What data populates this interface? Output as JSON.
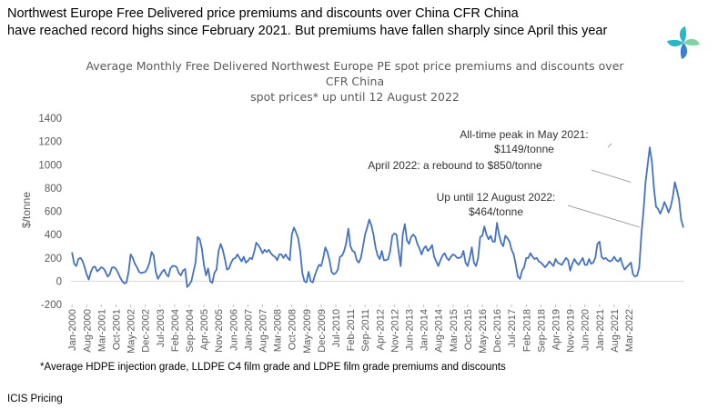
{
  "headline": {
    "line1": "Northwest Europe Free Delivered price premiums and discounts over China CFR China",
    "line2": "have reached record highs since February 2021. But premiums have fallen sharply since April this year"
  },
  "footnote": "*Average HDPE injection grade, LLDPE C4 film grade and LDPE film grade premiums and discounts",
  "source": "ICIS Pricing",
  "logo": {
    "icon": "icis-pinwheel-logo",
    "colors": [
      "#2bb8c6",
      "#3b7fd3",
      "#7ed3a0"
    ]
  },
  "chart_data": {
    "type": "line",
    "title_lines": [
      "Average Monthly Free Delivered Northwest Europe PE spot price premiums and discounts over",
      "CFR China",
      "spot prices* up until 12 August 2022"
    ],
    "xlabel": "",
    "ylabel": "$/tonne",
    "ylim": [
      -200,
      1400
    ],
    "yticks": [
      -200,
      0,
      200,
      400,
      600,
      800,
      1000,
      1200,
      1400
    ],
    "grid": false,
    "line_color": "#4472c4",
    "x_start": "Jan-2000",
    "xtick_labels": [
      "Jan-2000",
      "Aug-2000",
      "Mar-2001",
      "Oct-2001",
      "May-2002",
      "Dec-2002",
      "Jul-2003",
      "Feb-2004",
      "Sep-2004",
      "Apr-2005",
      "Nov-2005",
      "Jun-2006",
      "Jan-2007",
      "Aug-2007",
      "Mar-2008",
      "Oct-2008",
      "May-2009",
      "Dec-2009",
      "Jul-2010",
      "Feb-2011",
      "Sep-2011",
      "Apr-2012",
      "Nov-2012",
      "Jun-2013",
      "Jan-2014",
      "Aug-2014",
      "Mar-2015",
      "Oct-2015",
      "May-2016",
      "Dec-2016",
      "Jul-2017",
      "Feb-2018",
      "Sep-2018",
      "Apr-2019",
      "Nov-2019",
      "Jun-2020",
      "Jan-2021",
      "Aug-2021",
      "Mar-2022"
    ],
    "values": [
      245,
      150,
      130,
      190,
      200,
      175,
      120,
      55,
      15,
      80,
      120,
      125,
      85,
      100,
      120,
      110,
      80,
      40,
      60,
      115,
      120,
      105,
      70,
      30,
      0,
      -20,
      -10,
      80,
      230,
      200,
      150,
      120,
      80,
      70,
      75,
      80,
      110,
      160,
      250,
      220,
      80,
      20,
      50,
      80,
      100,
      60,
      40,
      110,
      130,
      130,
      120,
      70,
      50,
      90,
      105,
      -50,
      -30,
      0,
      80,
      160,
      380,
      360,
      280,
      140,
      50,
      110,
      0,
      -15,
      70,
      100,
      260,
      320,
      270,
      190,
      100,
      110,
      160,
      190,
      200,
      230,
      200,
      170,
      210,
      160,
      175,
      200,
      190,
      250,
      330,
      310,
      280,
      240,
      270,
      250,
      270,
      240,
      220,
      210,
      180,
      230,
      230,
      200,
      230,
      200,
      180,
      400,
      460,
      420,
      370,
      260,
      70,
      0,
      -10,
      80,
      0,
      -10,
      50,
      100,
      140,
      130,
      200,
      290,
      250,
      180,
      80,
      60,
      70,
      100,
      210,
      220,
      260,
      330,
      450,
      300,
      260,
      250,
      180,
      160,
      200,
      300,
      400,
      460,
      530,
      480,
      400,
      290,
      220,
      190,
      260,
      180,
      180,
      190,
      260,
      390,
      410,
      400,
      260,
      130,
      400,
      490,
      350,
      320,
      380,
      400,
      380,
      320,
      280,
      230,
      280,
      300,
      260,
      280,
      310,
      210,
      170,
      130,
      180,
      220,
      240,
      200,
      180,
      210,
      230,
      220,
      200,
      200,
      210,
      260,
      160,
      130,
      200,
      290,
      160,
      130,
      200,
      380,
      390,
      470,
      400,
      360,
      390,
      340,
      340,
      500,
      400,
      330,
      300,
      390,
      370,
      340,
      270,
      230,
      140,
      40,
      20,
      90,
      120,
      200,
      200,
      240,
      210,
      190,
      200,
      170,
      160,
      140,
      120,
      140,
      170,
      150,
      130,
      190,
      160,
      150,
      140,
      170,
      200,
      180,
      90,
      150,
      190,
      160,
      140,
      170,
      200,
      140,
      140,
      190,
      150,
      160,
      200,
      320,
      340,
      210,
      190,
      200,
      180,
      170,
      180,
      210,
      180,
      170,
      200,
      140,
      100,
      120,
      140,
      160,
      60,
      40,
      50,
      120,
      400,
      600,
      850,
      1000,
      1149,
      1030,
      800,
      640,
      620,
      580,
      620,
      680,
      640,
      590,
      640,
      720,
      850,
      780,
      700,
      530,
      464
    ],
    "annotations": [
      {
        "line1": "All-time peak in May 2021:",
        "line2": "$1149/tonne",
        "x": "May-2021",
        "y": 1149
      },
      {
        "line1": "April 2022: a rebound to $850/tonne",
        "x": "Apr-2022",
        "y": 850
      },
      {
        "line1": "Up until 12 August 2022:",
        "line2": "$464/tonne",
        "x": "Aug-2022",
        "y": 464
      }
    ]
  }
}
